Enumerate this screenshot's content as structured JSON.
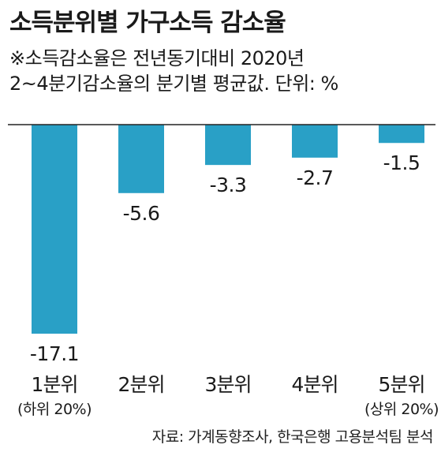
{
  "title": "소득분위별 가구소득 감소율",
  "subtitle_lines": [
    "※소득감소율은 전년동기대비 2020년",
    "2~4분기감소율의 분기별 평균값. 단위: %"
  ],
  "source": "자료: 가계동향조사, 한국은행 고용분석팀 분석",
  "bar_color": "#29a0c6",
  "chart_data": {
    "type": "bar",
    "categories": [
      "1분위",
      "2분위",
      "3분위",
      "4분위",
      "5분위"
    ],
    "category_notes": [
      "(하위 20%)",
      "",
      "",
      "",
      "(상위 20%)"
    ],
    "values": [
      -17.1,
      -5.6,
      -3.3,
      -2.7,
      -1.5
    ],
    "value_labels": [
      "-17.1",
      "-5.6",
      "-3.3",
      "-2.7",
      "-1.5"
    ],
    "unit": "%",
    "ylim": [
      -17.1,
      0
    ],
    "grid": false,
    "legend": "none"
  }
}
